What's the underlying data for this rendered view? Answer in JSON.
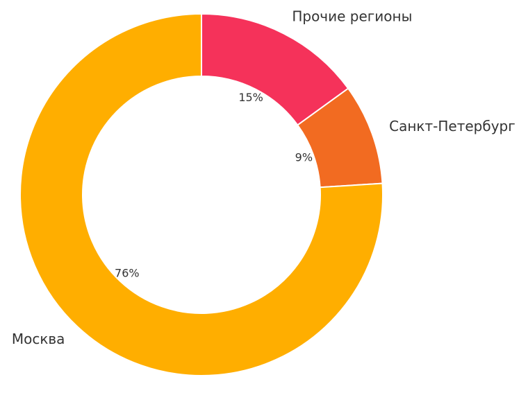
{
  "chart_data": {
    "type": "donut",
    "categories": [
      "Прочие регионы",
      "Санкт-Петербург",
      "Москва"
    ],
    "values": [
      15,
      9,
      76
    ],
    "value_labels": [
      "15%",
      "9%",
      "76%"
    ],
    "colors": [
      "#f5325a",
      "#f26b21",
      "#ffae00"
    ]
  }
}
